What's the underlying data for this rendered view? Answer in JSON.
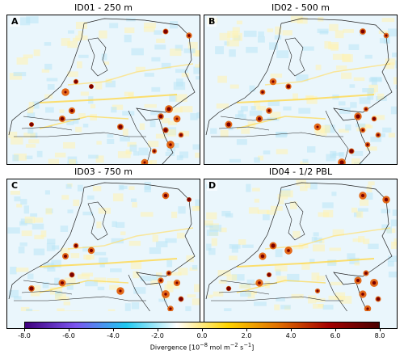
{
  "panels": [
    {
      "letter": "A",
      "title": "ID01 - 250 m"
    },
    {
      "letter": "B",
      "title": "ID02 - 500 m"
    },
    {
      "letter": "C",
      "title": "ID03 - 750 m"
    },
    {
      "letter": "D",
      "title": "ID04 - 1/2 PBL"
    }
  ],
  "colorbar": {
    "ticks": [
      "-8.0",
      "-6.0",
      "-4.0",
      "-2.0",
      "0.0",
      "2.0",
      "4.0",
      "6.0",
      "8.0"
    ],
    "range": [
      -8.0,
      8.0
    ],
    "label": "Divergence [10",
    "label_exp1": "−8",
    "label_mid": " mol m",
    "label_exp2": "−2",
    "label_mid2": " s",
    "label_exp3": "−1",
    "label_end": "]",
    "colors": [
      "#3f007d",
      "#7b55f0",
      "#1ec8f0",
      "#ffffff",
      "#ffd400",
      "#e07000",
      "#a50000",
      "#4a0000"
    ]
  }
}
